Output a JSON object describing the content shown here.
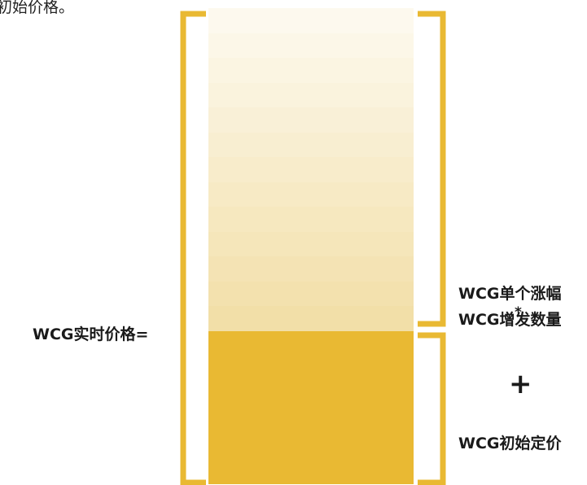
{
  "cut_text": "初始价格。",
  "left_label": "WCG实时价格=",
  "right": {
    "top_label": "WCG单个涨幅",
    "multiply": "*",
    "mid_label": "WCG增发数量",
    "plus": "+",
    "bottom_label": "WCG初始定价"
  },
  "colors": {
    "accent": "#E9B933",
    "base_fill": "#E9B933",
    "gradient_light": "#FDF9EE",
    "gradient_dark": "#F2DFA8"
  },
  "increment_band_count": 13
}
